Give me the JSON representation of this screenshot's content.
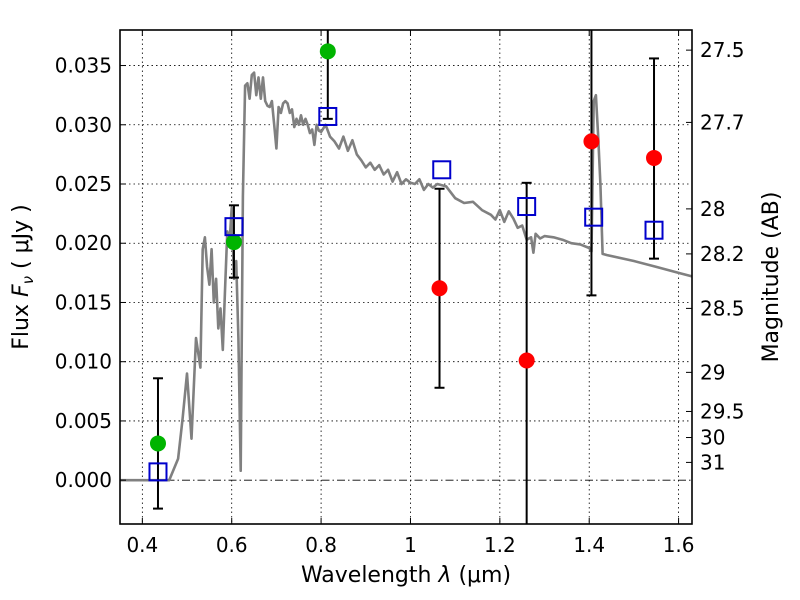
{
  "chart_data": {
    "type": "line",
    "xlabel": "Wavelength  λ (μm)",
    "ylabel": "Flux  F_ν  ( μJy )",
    "y2label": "Magnitude (AB)",
    "xlim": [
      0.35,
      1.63
    ],
    "ylim": [
      -0.0037,
      0.038
    ],
    "grid": true,
    "x_ticks": [
      0.4,
      0.6,
      0.8,
      1.0,
      1.2,
      1.4,
      1.6
    ],
    "x_tick_labels": [
      "0.4",
      "0.6",
      "0.8",
      "1",
      "1.2",
      "1.4",
      "1.6"
    ],
    "y_ticks": [
      0.0,
      0.005,
      0.01,
      0.015,
      0.02,
      0.025,
      0.03,
      0.035
    ],
    "y_tick_labels": [
      "0.000",
      "0.005",
      "0.010",
      "0.015",
      "0.020",
      "0.025",
      "0.030",
      "0.035"
    ],
    "y2_ticks": [
      {
        "label": "27.5",
        "flux": 0.0363
      },
      {
        "label": "27.7",
        "flux": 0.0302
      },
      {
        "label": "28",
        "flux": 0.0229
      },
      {
        "label": "28.2",
        "flux": 0.0191
      },
      {
        "label": "28.5",
        "flux": 0.0145
      },
      {
        "label": "29",
        "flux": 0.0091
      },
      {
        "label": "29.5",
        "flux": 0.0058
      },
      {
        "label": "30",
        "flux": 0.0036
      },
      {
        "label": "31",
        "flux": 0.0015
      }
    ],
    "model_sed": {
      "color": "#808080",
      "x": [
        0.35,
        0.46,
        0.48,
        0.49,
        0.5,
        0.51,
        0.52,
        0.53,
        0.535,
        0.54,
        0.545,
        0.55,
        0.555,
        0.56,
        0.565,
        0.57,
        0.575,
        0.58,
        0.585,
        0.59,
        0.595,
        0.6,
        0.605,
        0.61,
        0.615,
        0.62,
        0.625,
        0.63,
        0.635,
        0.64,
        0.645,
        0.65,
        0.655,
        0.66,
        0.665,
        0.67,
        0.675,
        0.68,
        0.685,
        0.69,
        0.695,
        0.7,
        0.705,
        0.71,
        0.715,
        0.72,
        0.725,
        0.73,
        0.735,
        0.74,
        0.745,
        0.75,
        0.755,
        0.76,
        0.765,
        0.77,
        0.775,
        0.78,
        0.785,
        0.79,
        0.795,
        0.8,
        0.81,
        0.82,
        0.83,
        0.84,
        0.85,
        0.86,
        0.87,
        0.88,
        0.89,
        0.9,
        0.91,
        0.92,
        0.93,
        0.94,
        0.95,
        0.96,
        0.97,
        0.98,
        0.99,
        1.0,
        1.01,
        1.02,
        1.03,
        1.04,
        1.05,
        1.06,
        1.08,
        1.1,
        1.12,
        1.14,
        1.16,
        1.18,
        1.19,
        1.2,
        1.21,
        1.22,
        1.23,
        1.24,
        1.25,
        1.26,
        1.27,
        1.275,
        1.28,
        1.29,
        1.3,
        1.32,
        1.34,
        1.36,
        1.38,
        1.4,
        1.405,
        1.41,
        1.415,
        1.42,
        1.425,
        1.43,
        1.44,
        1.5,
        1.55,
        1.6,
        1.63
      ],
      "y": [
        0.0,
        0.0,
        0.0018,
        0.0052,
        0.009,
        0.0035,
        0.012,
        0.0095,
        0.0195,
        0.0205,
        0.018,
        0.0165,
        0.0195,
        0.015,
        0.017,
        0.0128,
        0.0145,
        0.011,
        0.016,
        0.021,
        0.02,
        0.023,
        0.017,
        0.0185,
        0.012,
        0.0008,
        0.024,
        0.0333,
        0.0335,
        0.0322,
        0.0342,
        0.0344,
        0.0325,
        0.034,
        0.0322,
        0.034,
        0.032,
        0.0316,
        0.0315,
        0.032,
        0.03,
        0.028,
        0.0315,
        0.031,
        0.0318,
        0.032,
        0.0318,
        0.031,
        0.0313,
        0.0298,
        0.0305,
        0.03,
        0.0308,
        0.03,
        0.0305,
        0.03,
        0.0293,
        0.0296,
        0.0283,
        0.03,
        0.0295,
        0.0294,
        0.03,
        0.029,
        0.0286,
        0.028,
        0.029,
        0.0278,
        0.0287,
        0.0275,
        0.027,
        0.0264,
        0.0268,
        0.0262,
        0.0266,
        0.0258,
        0.0262,
        0.0252,
        0.026,
        0.025,
        0.0254,
        0.0251,
        0.025,
        0.0254,
        0.0245,
        0.025,
        0.0247,
        0.025,
        0.0248,
        0.0238,
        0.0234,
        0.0235,
        0.0228,
        0.0224,
        0.022,
        0.0228,
        0.0218,
        0.0227,
        0.0221,
        0.0213,
        0.0215,
        0.0203,
        0.0205,
        0.0192,
        0.0208,
        0.0204,
        0.0206,
        0.0205,
        0.0203,
        0.02,
        0.0199,
        0.0196,
        0.0193,
        0.032,
        0.0325,
        0.029,
        0.025,
        0.0191,
        0.019,
        0.0185,
        0.018,
        0.0175,
        0.0172
      ]
    },
    "green_points": {
      "color": "#00b400",
      "x": [
        0.435,
        0.605,
        0.815
      ],
      "y": [
        0.0031,
        0.0201,
        0.0362
      ],
      "err": [
        0.0,
        0.0,
        0.0
      ]
    },
    "red_points": {
      "color": "#ff0000",
      "x": [
        1.065,
        1.26,
        1.405,
        1.545
      ],
      "y": [
        0.0162,
        0.0101,
        0.0286,
        0.0272
      ],
      "err": [
        0.0,
        0.0,
        0.0,
        0.0
      ]
    },
    "blue_squares": {
      "color": "#0000cc",
      "x": [
        0.435,
        0.605,
        0.815,
        1.07,
        1.26,
        1.41,
        1.545
      ],
      "y": [
        0.0007,
        0.0214,
        0.0307,
        0.0262,
        0.0231,
        0.0222,
        0.0211
      ]
    },
    "error_bars": [
      {
        "x": 0.435,
        "low": -0.0024,
        "high": 0.0086
      },
      {
        "x": 0.605,
        "low": 0.0171,
        "high": 0.0232
      },
      {
        "x": 0.815,
        "low": 0.0305,
        "high": 0.038
      },
      {
        "x": 1.065,
        "low": 0.0078,
        "high": 0.0246
      },
      {
        "x": 1.26,
        "low": -0.0037,
        "high": 0.0251
      },
      {
        "x": 1.405,
        "low": 0.0156,
        "high": 0.038
      },
      {
        "x": 1.545,
        "low": 0.0187,
        "high": 0.0356
      }
    ]
  }
}
